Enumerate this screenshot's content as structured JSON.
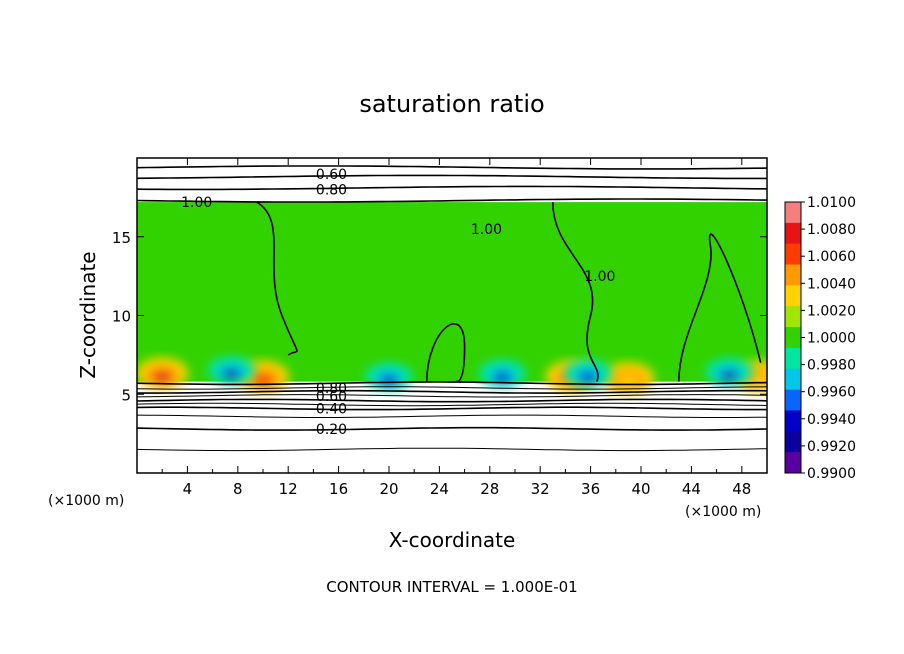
{
  "chart_data": {
    "type": "heatmap",
    "title": "saturation ratio",
    "xlabel": "X-coordinate",
    "ylabel": "Z-coordinate",
    "x_unit_left": "(×1000 m)",
    "x_unit_right": "(×1000 m)",
    "xlim": [
      0,
      50
    ],
    "ylim": [
      0,
      20
    ],
    "x_ticks": [
      4,
      8,
      12,
      16,
      20,
      24,
      28,
      32,
      36,
      40,
      44,
      48
    ],
    "y_ticks": [
      5,
      10,
      15
    ],
    "footer": "CONTOUR INTERVAL = 1.000E-01",
    "colorbar": {
      "labels": [
        "1.0100",
        "1.0080",
        "1.0060",
        "1.0040",
        "1.0020",
        "1.0000",
        "0.9980",
        "0.9960",
        "0.9940",
        "0.9920",
        "0.9900"
      ],
      "colors": [
        "#f47f7f",
        "#e61414",
        "#ff3c00",
        "#ff9a00",
        "#ffd200",
        "#a0e600",
        "#32d200",
        "#00e6a0",
        "#00c8e6",
        "#0a64ff",
        "#0000c8",
        "#0a00a0",
        "#5a00a0"
      ]
    },
    "cloud_layer": {
      "base_z": 5.8,
      "top_z": 17.2,
      "fill_color": "#32d200"
    },
    "contour_labels": [
      {
        "text": "0.60",
        "x": 14.2,
        "z": 19.0
      },
      {
        "text": "0.80",
        "x": 14.2,
        "z": 18.0
      },
      {
        "text": "1.00",
        "x": 3.5,
        "z": 17.2
      },
      {
        "text": "1.00",
        "x": 26.5,
        "z": 15.5
      },
      {
        "text": "1.00",
        "x": 35.5,
        "z": 12.5
      },
      {
        "text": "0.80",
        "x": 14.2,
        "z": 5.4
      },
      {
        "text": "0.60",
        "x": 14.2,
        "z": 4.9
      },
      {
        "text": "0.40",
        "x": 14.2,
        "z": 4.1
      },
      {
        "text": "0.20",
        "x": 14.2,
        "z": 2.8
      }
    ],
    "contour_levels_below": [
      0.8,
      0.6,
      0.4,
      0.2
    ],
    "contour_levels_above": [
      0.6,
      0.8,
      1.0
    ],
    "warm_spots": [
      {
        "x": 2.0,
        "z": 6.2,
        "value": 1.008
      },
      {
        "x": 10.0,
        "z": 6.0,
        "value": 1.006
      },
      {
        "x": 34.5,
        "z": 6.0,
        "value": 1.005
      },
      {
        "x": 39.0,
        "z": 5.9,
        "value": 1.004
      },
      {
        "x": 49.5,
        "z": 6.0,
        "value": 1.004
      }
    ],
    "cold_spots": [
      {
        "x": 7.5,
        "z": 6.4,
        "value": 0.992
      },
      {
        "x": 20.0,
        "z": 6.0,
        "value": 0.994
      },
      {
        "x": 29.0,
        "z": 6.2,
        "value": 0.994
      },
      {
        "x": 35.8,
        "z": 6.2,
        "value": 0.994
      },
      {
        "x": 47.0,
        "z": 6.3,
        "value": 0.991
      }
    ]
  }
}
